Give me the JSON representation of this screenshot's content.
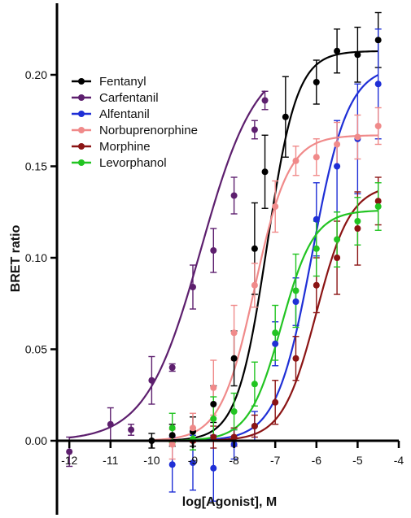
{
  "chart_data": {
    "type": "scatter",
    "xlabel": "log[Agonist], M",
    "ylabel": "BRET ratio",
    "xlim": [
      -12.3,
      -4
    ],
    "ylim": [
      -0.028,
      0.24
    ],
    "x_ticks": [
      -12,
      -11,
      -10,
      -9,
      -8,
      -7,
      -6,
      -5,
      -4
    ],
    "y_ticks": [
      0.0,
      0.05,
      0.1,
      0.15,
      0.2
    ],
    "y_tick_labels": [
      "0.00",
      "0.05",
      "0.10",
      "0.15",
      "0.20"
    ],
    "legend_position": "top-left",
    "series": [
      {
        "name": "Fentanyl",
        "color": "#000000",
        "fit": {
          "bottom": 0.0,
          "top": 0.213,
          "logEC50": -7.2,
          "hill": 1.2,
          "xmin": -10,
          "xmax": -4.5
        },
        "points": [
          {
            "x": -10.0,
            "y": 0.0,
            "err": 0.004
          },
          {
            "x": -9.5,
            "y": 0.003,
            "err": 0.006
          },
          {
            "x": -9.0,
            "y": 0.005,
            "err": 0.008
          },
          {
            "x": -8.5,
            "y": 0.02,
            "err": 0.01
          },
          {
            "x": -8.0,
            "y": 0.045,
            "err": 0.015
          },
          {
            "x": -7.5,
            "y": 0.105,
            "err": 0.025
          },
          {
            "x": -7.25,
            "y": 0.147,
            "err": 0.02
          },
          {
            "x": -6.75,
            "y": 0.177,
            "err": 0.022
          },
          {
            "x": -6.0,
            "y": 0.196,
            "err": 0.012
          },
          {
            "x": -5.5,
            "y": 0.213,
            "err": 0.012
          },
          {
            "x": -5.0,
            "y": 0.211,
            "err": 0.015
          },
          {
            "x": -4.5,
            "y": 0.219,
            "err": 0.015
          }
        ]
      },
      {
        "name": "Carfentanil",
        "color": "#5d1f6e",
        "fit": {
          "bottom": 0.0,
          "top": 0.21,
          "logEC50": -8.8,
          "hill": 0.65,
          "xmin": -12,
          "xmax": -7.25
        },
        "points": [
          {
            "x": -12.0,
            "y": -0.006,
            "err": 0.008
          },
          {
            "x": -11.0,
            "y": 0.009,
            "err": 0.009
          },
          {
            "x": -10.5,
            "y": 0.006,
            "err": 0.003
          },
          {
            "x": -10.0,
            "y": 0.033,
            "err": 0.013
          },
          {
            "x": -9.5,
            "y": 0.04,
            "err": 0.002
          },
          {
            "x": -9.0,
            "y": 0.084,
            "err": 0.012
          },
          {
            "x": -8.5,
            "y": 0.104,
            "err": 0.012
          },
          {
            "x": -8.0,
            "y": 0.134,
            "err": 0.01
          },
          {
            "x": -7.5,
            "y": 0.17,
            "err": 0.005
          },
          {
            "x": -7.25,
            "y": 0.186,
            "err": 0.005
          }
        ]
      },
      {
        "name": "Alfentanil",
        "color": "#1f2fd6",
        "fit": {
          "bottom": 0.0,
          "top": 0.205,
          "logEC50": -6.1,
          "hill": 1.0,
          "xmin": -10,
          "xmax": -4.5
        },
        "points": [
          {
            "x": -9.5,
            "y": -0.013,
            "err": 0.015
          },
          {
            "x": -9.0,
            "y": -0.012,
            "err": 0.015
          },
          {
            "x": -8.5,
            "y": -0.015,
            "err": 0.018
          },
          {
            "x": -8.0,
            "y": -0.002,
            "err": 0.008
          },
          {
            "x": -7.5,
            "y": 0.008,
            "err": 0.008
          },
          {
            "x": -7.0,
            "y": 0.053,
            "err": 0.012
          },
          {
            "x": -6.5,
            "y": 0.076,
            "err": 0.013
          },
          {
            "x": -6.0,
            "y": 0.121,
            "err": 0.02
          },
          {
            "x": -5.5,
            "y": 0.15,
            "err": 0.025
          },
          {
            "x": -5.0,
            "y": 0.165,
            "err": 0.03
          },
          {
            "x": -4.5,
            "y": 0.195,
            "err": 0.03
          }
        ]
      },
      {
        "name": "Norbuprenorphine",
        "color": "#f08a8a",
        "fit": {
          "bottom": 0.0,
          "top": 0.167,
          "logEC50": -7.5,
          "hill": 1.05,
          "xmin": -10,
          "xmax": -4.5
        },
        "points": [
          {
            "x": -9.5,
            "y": -0.002,
            "err": 0.008
          },
          {
            "x": -9.0,
            "y": 0.007,
            "err": 0.008
          },
          {
            "x": -8.5,
            "y": 0.029,
            "err": 0.015
          },
          {
            "x": -8.0,
            "y": 0.059,
            "err": 0.015
          },
          {
            "x": -7.5,
            "y": 0.085,
            "err": 0.012
          },
          {
            "x": -7.0,
            "y": 0.128,
            "err": 0.014
          },
          {
            "x": -6.5,
            "y": 0.153,
            "err": 0.008
          },
          {
            "x": -6.0,
            "y": 0.155,
            "err": 0.01
          },
          {
            "x": -5.5,
            "y": 0.162,
            "err": 0.012
          },
          {
            "x": -5.0,
            "y": 0.166,
            "err": 0.012
          },
          {
            "x": -4.5,
            "y": 0.172,
            "err": 0.01
          }
        ]
      },
      {
        "name": "Morphine",
        "color": "#8b1414",
        "fit": {
          "bottom": 0.0,
          "top": 0.14,
          "logEC50": -6.0,
          "hill": 1.05,
          "xmin": -10,
          "xmax": -4.5
        },
        "points": [
          {
            "x": -9.0,
            "y": 0.0,
            "err": 0.005
          },
          {
            "x": -8.5,
            "y": 0.002,
            "err": 0.006
          },
          {
            "x": -8.0,
            "y": 0.002,
            "err": 0.005
          },
          {
            "x": -7.5,
            "y": 0.008,
            "err": 0.006
          },
          {
            "x": -7.0,
            "y": 0.021,
            "err": 0.012
          },
          {
            "x": -6.5,
            "y": 0.045,
            "err": 0.012
          },
          {
            "x": -6.0,
            "y": 0.085,
            "err": 0.015
          },
          {
            "x": -5.5,
            "y": 0.1,
            "err": 0.02
          },
          {
            "x": -5.0,
            "y": 0.116,
            "err": 0.02
          },
          {
            "x": -4.5,
            "y": 0.131,
            "err": 0.013
          }
        ]
      },
      {
        "name": "Levorphanol",
        "color": "#22c422",
        "fit": {
          "bottom": 0.0,
          "top": 0.126,
          "logEC50": -6.85,
          "hill": 1.1,
          "xmin": -10,
          "xmax": -4.5
        },
        "points": [
          {
            "x": -9.5,
            "y": 0.007,
            "err": 0.008
          },
          {
            "x": -9.0,
            "y": 0.001,
            "err": 0.006
          },
          {
            "x": -8.5,
            "y": 0.012,
            "err": 0.012
          },
          {
            "x": -8.0,
            "y": 0.016,
            "err": 0.01
          },
          {
            "x": -7.5,
            "y": 0.031,
            "err": 0.012
          },
          {
            "x": -7.0,
            "y": 0.059,
            "err": 0.015
          },
          {
            "x": -6.5,
            "y": 0.082,
            "err": 0.02
          },
          {
            "x": -6.0,
            "y": 0.105,
            "err": 0.015
          },
          {
            "x": -5.5,
            "y": 0.11,
            "err": 0.015
          },
          {
            "x": -5.0,
            "y": 0.12,
            "err": 0.013
          },
          {
            "x": -4.5,
            "y": 0.128,
            "err": 0.013
          }
        ]
      }
    ]
  }
}
